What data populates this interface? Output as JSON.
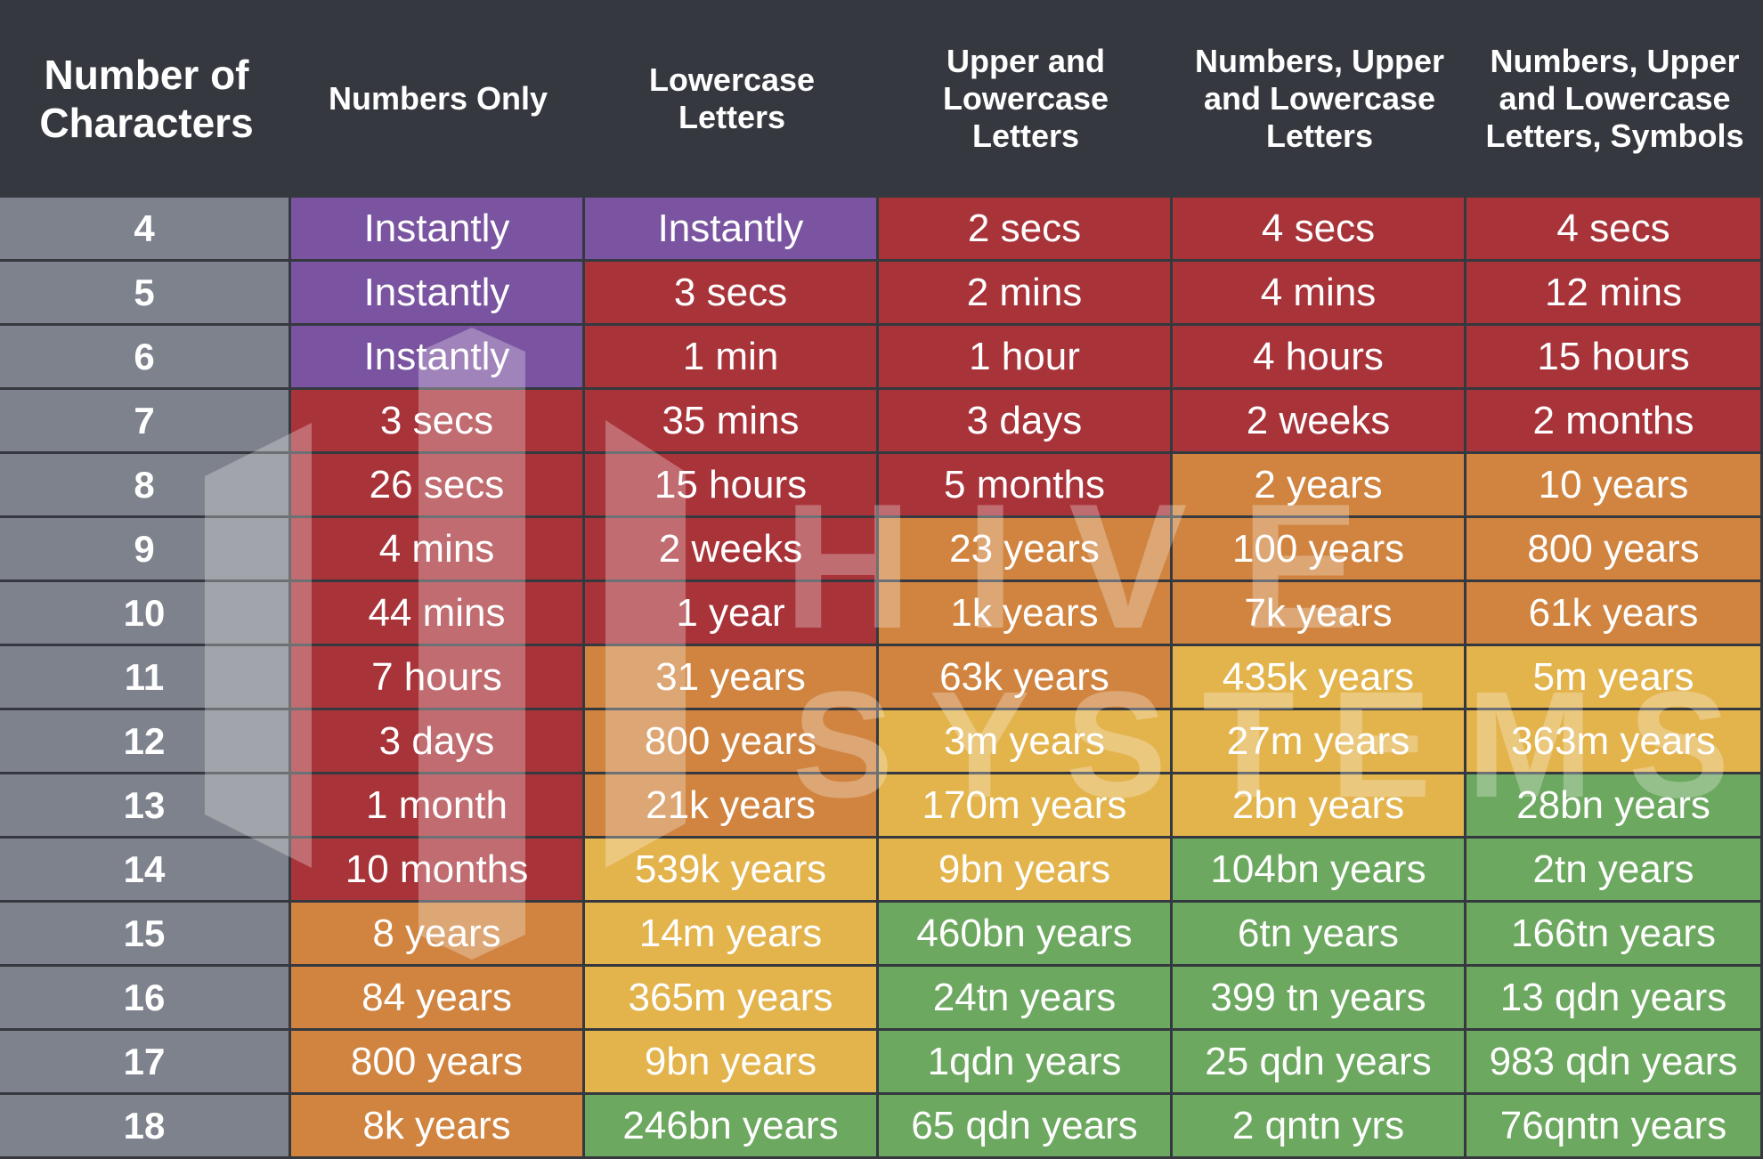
{
  "chart_data": {
    "type": "table",
    "title": "",
    "columns": [
      "Number of Characters",
      "Numbers Only",
      "Lowercase Letters",
      "Upper and Lowercase Letters",
      "Numbers, Upper and Lowercase Letters",
      "Numbers, Upper and Lowercase Letters, Symbols"
    ],
    "header_lines": [
      [
        "Number of",
        "Characters"
      ],
      [
        "Numbers Only"
      ],
      [
        "Lowercase",
        "Letters"
      ],
      [
        "Upper and",
        "Lowercase",
        "Letters"
      ],
      [
        "Numbers, Upper",
        "and Lowercase",
        "Letters"
      ],
      [
        "Numbers, Upper",
        "and Lowercase",
        "Letters, Symbols"
      ]
    ],
    "rows": [
      {
        "chars": "4",
        "values": [
          "Instantly",
          "Instantly",
          "2 secs",
          "4 secs",
          "4 secs"
        ],
        "levels": [
          "instant",
          "instant",
          "red",
          "red",
          "red"
        ]
      },
      {
        "chars": "5",
        "values": [
          "Instantly",
          "3 secs",
          "2 mins",
          "4 mins",
          "12 mins"
        ],
        "levels": [
          "instant",
          "red",
          "red",
          "red",
          "red"
        ]
      },
      {
        "chars": "6",
        "values": [
          "Instantly",
          "1 min",
          "1 hour",
          "4 hours",
          "15 hours"
        ],
        "levels": [
          "instant",
          "red",
          "red",
          "red",
          "red"
        ]
      },
      {
        "chars": "7",
        "values": [
          "3 secs",
          "35 mins",
          "3 days",
          "2 weeks",
          "2 months"
        ],
        "levels": [
          "red",
          "red",
          "red",
          "red",
          "red"
        ]
      },
      {
        "chars": "8",
        "values": [
          "26 secs",
          "15 hours",
          "5 months",
          "2 years",
          "10 years"
        ],
        "levels": [
          "red",
          "red",
          "red",
          "orange",
          "orange"
        ]
      },
      {
        "chars": "9",
        "values": [
          "4 mins",
          "2 weeks",
          "23 years",
          "100 years",
          "800 years"
        ],
        "levels": [
          "red",
          "red",
          "orange",
          "orange",
          "orange"
        ]
      },
      {
        "chars": "10",
        "values": [
          "44 mins",
          "1 year",
          "1k years",
          "7k years",
          "61k years"
        ],
        "levels": [
          "red",
          "red",
          "orange",
          "orange",
          "orange"
        ]
      },
      {
        "chars": "11",
        "values": [
          "7 hours",
          "31 years",
          "63k years",
          "435k years",
          "5m years"
        ],
        "levels": [
          "red",
          "orange",
          "orange",
          "yellow",
          "yellow"
        ]
      },
      {
        "chars": "12",
        "values": [
          "3 days",
          "800 years",
          "3m years",
          "27m years",
          "363m years"
        ],
        "levels": [
          "red",
          "orange",
          "yellow",
          "yellow",
          "yellow"
        ]
      },
      {
        "chars": "13",
        "values": [
          "1 month",
          "21k years",
          "170m years",
          "2bn years",
          "28bn years"
        ],
        "levels": [
          "red",
          "orange",
          "yellow",
          "yellow",
          "green"
        ]
      },
      {
        "chars": "14",
        "values": [
          "10 months",
          "539k years",
          "9bn years",
          "104bn years",
          "2tn years"
        ],
        "levels": [
          "red",
          "yellow",
          "yellow",
          "green",
          "green"
        ]
      },
      {
        "chars": "15",
        "values": [
          "8 years",
          "14m years",
          "460bn years",
          "6tn years",
          "166tn years"
        ],
        "levels": [
          "orange",
          "yellow",
          "green",
          "green",
          "green"
        ]
      },
      {
        "chars": "16",
        "values": [
          "84 years",
          "365m years",
          "24tn years",
          "399 tn years",
          "13 qdn years"
        ],
        "levels": [
          "orange",
          "yellow",
          "green",
          "green",
          "green"
        ]
      },
      {
        "chars": "17",
        "values": [
          "800 years",
          "9bn years",
          "1qdn years",
          "25 qdn years",
          "983 qdn years"
        ],
        "levels": [
          "orange",
          "yellow",
          "green",
          "green",
          "green"
        ]
      },
      {
        "chars": "18",
        "values": [
          "8k years",
          "246bn years",
          "65 qdn years",
          "2 qntn yrs",
          "76qntn years"
        ],
        "levels": [
          "orange",
          "green",
          "green",
          "green",
          "green"
        ]
      }
    ]
  },
  "colors": {
    "header_bg": "#35393f",
    "row_label_bg": "#7e828c",
    "instant": "#7a54a0",
    "red": "#a8343a",
    "orange": "#d08440",
    "yellow": "#e3b34c",
    "green": "#6ca85f",
    "text": "#ffffff"
  },
  "watermark": {
    "word1": "HIVE",
    "word2": "SYSTEMS"
  }
}
